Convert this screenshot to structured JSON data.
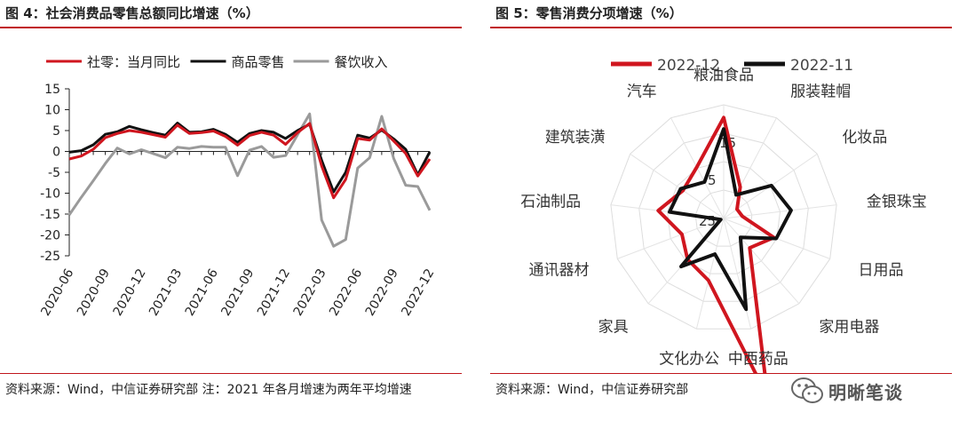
{
  "left": {
    "title": "图 4：社会消费品零售总额同比增速（%）",
    "source": "资料来源：Wind，中信证券研究部 注：2021 年各月增速为两年平均增速"
  },
  "right": {
    "title": "图 5：零售消费分项增速（%）",
    "source": "资料来源：Wind，中信证券研究部"
  },
  "watermark": {
    "text": "明晰笔谈",
    "icon": "wechat-icon"
  },
  "chart_data": [
    {
      "type": "line",
      "ylim": [
        -25,
        15
      ],
      "yticks": [
        15,
        10,
        5,
        0,
        -5,
        -10,
        -15,
        -20,
        -25
      ],
      "x": [
        "2020-06",
        "2020-07",
        "2020-08",
        "2020-09",
        "2020-10",
        "2020-11",
        "2020-12",
        "2021-01",
        "2021-02",
        "2021-03",
        "2021-04",
        "2021-05",
        "2021-06",
        "2021-07",
        "2021-08",
        "2021-09",
        "2021-10",
        "2021-11",
        "2021-12",
        "2022-01",
        "2022-02",
        "2022-03",
        "2022-04",
        "2022-05",
        "2022-06",
        "2022-07",
        "2022-08",
        "2022-09",
        "2022-10",
        "2022-11",
        "2022-12"
      ],
      "xtick_labels": [
        "2020-06",
        "2020-09",
        "2020-12",
        "2021-03",
        "2021-06",
        "2021-09",
        "2021-12",
        "2022-03",
        "2022-06",
        "2022-09",
        "2022-12"
      ],
      "series": [
        {
          "name": "社零：当月同比",
          "color": "#d0161f",
          "values": [
            -1.8,
            -1.1,
            0.5,
            3.3,
            4.3,
            5.0,
            4.6,
            4.0,
            3.4,
            6.3,
            4.3,
            4.5,
            4.9,
            3.6,
            1.5,
            3.8,
            4.6,
            3.9,
            1.7,
            4.5,
            6.7,
            -3.5,
            -11.1,
            -6.7,
            3.1,
            2.7,
            5.4,
            2.5,
            -0.5,
            -5.9,
            -1.8
          ]
        },
        {
          "name": "商品零售",
          "color": "#111111",
          "values": [
            -0.2,
            0.2,
            1.6,
            4.1,
            4.7,
            6.0,
            5.2,
            4.5,
            3.9,
            6.8,
            4.6,
            4.7,
            5.3,
            4.1,
            2.2,
            4.3,
            5.0,
            4.6,
            3.1,
            5.0,
            6.5,
            -2.1,
            -9.7,
            -5.0,
            3.9,
            3.2,
            5.1,
            3.0,
            0.5,
            -5.6,
            -0.1
          ]
        },
        {
          "name": "餐饮收入",
          "color": "#9a9a9a",
          "values": [
            -15.2,
            -11.0,
            -7.0,
            -2.9,
            0.8,
            -0.6,
            0.4,
            -0.5,
            -1.5,
            1.0,
            0.7,
            1.2,
            1.0,
            1.0,
            -5.8,
            0.3,
            1.2,
            -1.4,
            -1.0,
            4.0,
            9.0,
            -16.4,
            -22.7,
            -21.1,
            -4.0,
            -1.5,
            8.4,
            -1.7,
            -8.1,
            -8.4,
            -14.1
          ]
        }
      ]
    },
    {
      "type": "radar",
      "rmax": 15,
      "tick_labels": [
        "15",
        "5",
        "25"
      ],
      "categories": [
        "粮油食品",
        "服装鞋帽",
        "化妆品",
        "金银珠宝",
        "日用品",
        "家用电器",
        "中西药品",
        "文化办公",
        "家具",
        "通讯器材",
        "石油制品",
        "建筑装潢",
        "汽车"
      ],
      "series": [
        {
          "name": "2022-12",
          "color": "#d0161f",
          "values": [
            10.5,
            -12.5,
            -19.3,
            -18.4,
            -6.1,
            -11.2,
            39.8,
            -2.6,
            -5.8,
            -9.3,
            -1.8,
            -7.6,
            -4.6
          ]
        },
        {
          "name": "2022-11",
          "color": "#111111",
          "values": [
            6.5,
            -15.6,
            -4.6,
            -1.1,
            -5.2,
            -16.1,
            7.9,
            -12.1,
            -2.4,
            -23.9,
            -5.8,
            -6.6,
            -10.5
          ]
        }
      ]
    }
  ]
}
